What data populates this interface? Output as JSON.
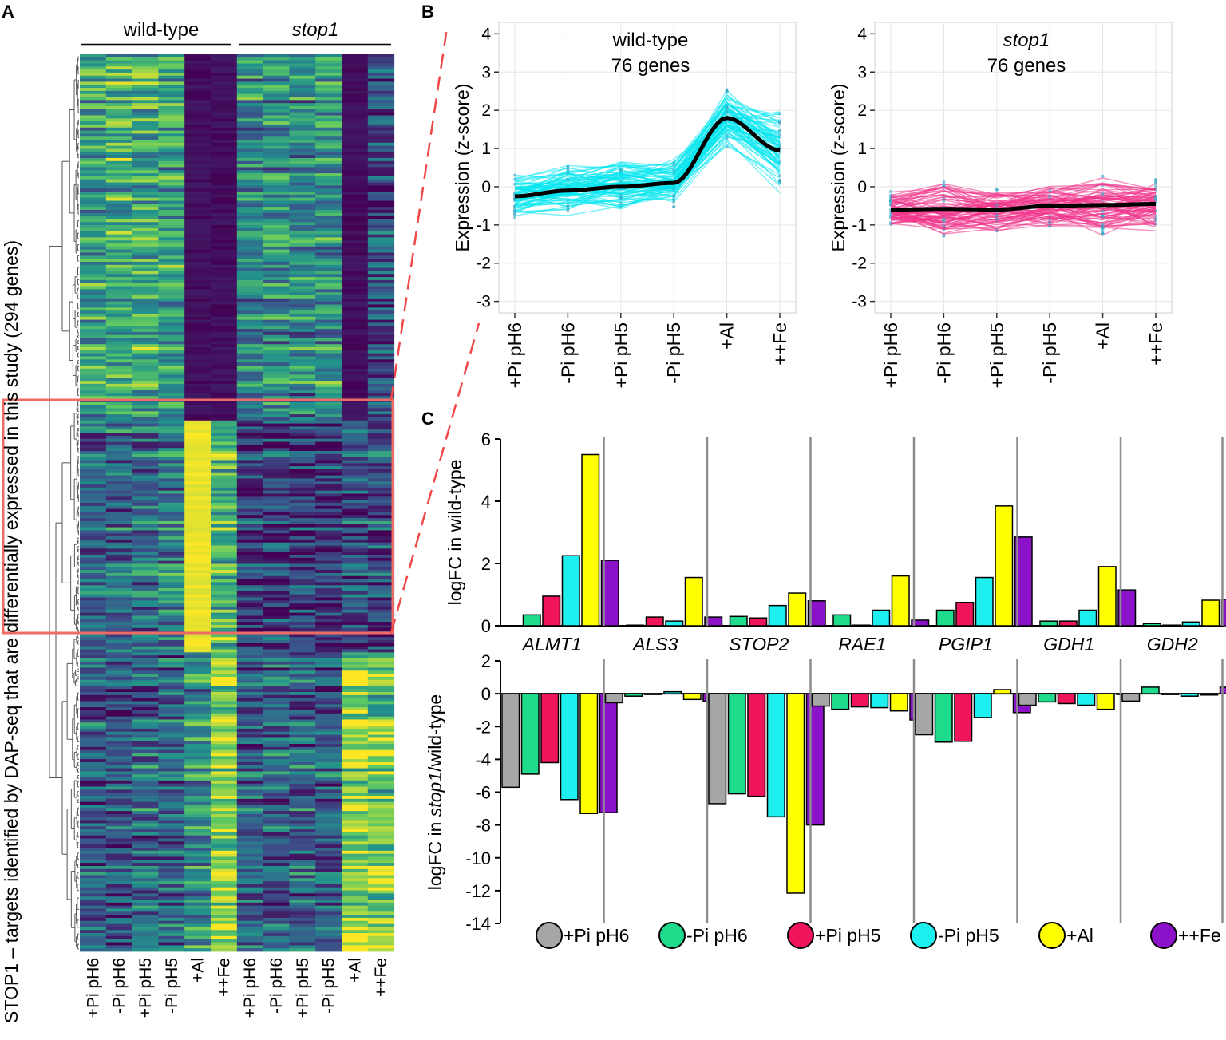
{
  "panels": {
    "a": "A",
    "b": "B",
    "c": "C"
  },
  "colors": {
    "gray": "#a6a6a6",
    "green": "#1fdc8c",
    "red": "#f0145a",
    "cyan": "#1ef0f0",
    "yellow": "#ffff00",
    "purple": "#8b12c8",
    "wt_line": "#00e5ee",
    "stop1_line": "#f0338a",
    "highlight": "#f06a66"
  },
  "heatmap": {
    "ylabel": "STOP1 – targets identified by DAP-seq that are differentially expressed in this study (294 genes)",
    "group_wt": "wild-type",
    "group_stop1": "stop1",
    "columns": [
      "+Pi pH6",
      "-Pi pH6",
      "+Pi pH5",
      "-Pi pH5",
      "+Al",
      "++Fe",
      "+Pi pH6",
      "-Pi pH6",
      "+Pi pH5",
      "-Pi pH5",
      "+Al",
      "++Fe"
    ],
    "viridis": [
      "#440154",
      "#3b528b",
      "#21918c",
      "#5ec962",
      "#fde725"
    ],
    "clusters": [
      {
        "name": "cluster-1",
        "rows": 120,
        "wt": [
          0.55,
          0.6,
          0.6,
          0.55,
          0.0,
          0.05
        ],
        "stop1": [
          0.45,
          0.5,
          0.45,
          0.5,
          0.05,
          0.2
        ]
      },
      {
        "name": "cluster-2-al-responsive",
        "rows": 76,
        "wt": [
          0.35,
          0.38,
          0.4,
          0.45,
          1.0,
          0.7
        ],
        "stop1": [
          0.2,
          0.2,
          0.2,
          0.2,
          0.25,
          0.25
        ]
      },
      {
        "name": "cluster-3",
        "rows": 98,
        "wt": [
          0.3,
          0.25,
          0.35,
          0.35,
          0.5,
          0.85
        ],
        "stop1": [
          0.3,
          0.3,
          0.3,
          0.3,
          0.85,
          0.75
        ]
      }
    ]
  },
  "wt_plot": {
    "title_line1": "wild-type",
    "title_line2": "76 genes",
    "ylabel": "Expression (z-score)",
    "conditions": [
      "+Pi pH6",
      "-Pi pH6",
      "+Pi pH5",
      "-Pi pH5",
      "+Al",
      "++Fe"
    ],
    "yticks": [
      4,
      3,
      2,
      1,
      0,
      -1,
      -2,
      -3
    ],
    "ylim": [
      -3.3,
      4.3
    ],
    "mean": [
      -0.25,
      -0.1,
      0.0,
      0.1,
      1.8,
      0.95
    ],
    "spread": [
      0.7,
      0.8,
      0.8,
      0.8,
      1.0,
      1.4
    ],
    "gene_count": 76
  },
  "stop1_plot": {
    "title_line1": "stop1",
    "title_line2": "76 genes",
    "ylabel": "Expression (z-score)",
    "conditions": [
      "+Pi pH6",
      "-Pi pH6",
      "+Pi pH5",
      "-Pi pH5",
      "+Al",
      "++Fe"
    ],
    "yticks": [
      4,
      3,
      2,
      1,
      0,
      -1,
      -2,
      -3
    ],
    "ylim": [
      -3.3,
      4.3
    ],
    "mean": [
      -0.6,
      -0.58,
      -0.6,
      -0.5,
      -0.48,
      -0.45
    ],
    "spread": [
      0.6,
      0.9,
      0.7,
      0.7,
      1.0,
      0.8
    ],
    "gene_count": 76
  },
  "chart_data": {
    "type": "bar",
    "title": "",
    "genes": [
      "ALMT1",
      "ALS3",
      "STOP2",
      "RAE1",
      "PGIP1",
      "GDH1",
      "GDH2"
    ],
    "legend": [
      "+Pi pH6",
      "-Pi pH6",
      "+Pi pH5",
      "-Pi pH5",
      "+Al",
      "++Fe"
    ],
    "wt": {
      "ylabel": "logFC in wild-type",
      "ylim": [
        0,
        6
      ],
      "yticks": [
        0,
        2,
        4,
        6
      ],
      "series_index": [
        1,
        2,
        3,
        4,
        5
      ],
      "values": [
        [
          0.35,
          0.95,
          2.25,
          5.5,
          2.1
        ],
        [
          0.02,
          0.28,
          0.15,
          1.55,
          0.28
        ],
        [
          0.3,
          0.25,
          0.65,
          1.05,
          0.8
        ],
        [
          0.35,
          0.02,
          0.5,
          1.6,
          0.18
        ],
        [
          0.5,
          0.75,
          1.55,
          3.85,
          2.85
        ],
        [
          0.15,
          0.15,
          0.5,
          1.9,
          1.15
        ],
        [
          0.07,
          0.02,
          0.12,
          0.82,
          0.85
        ]
      ]
    },
    "stop1": {
      "ylabel_prefix": "logFC in ",
      "ylabel_italic": "stop1",
      "ylabel_suffix": "/wild-type",
      "ylim": [
        -14,
        2
      ],
      "yticks": [
        2,
        0,
        -2,
        -4,
        -6,
        -8,
        -10,
        -12,
        -14
      ],
      "series_index": [
        0,
        1,
        2,
        3,
        4,
        5
      ],
      "values": [
        [
          -5.7,
          -4.9,
          -4.2,
          -6.45,
          -7.3,
          -7.25
        ],
        [
          -0.55,
          -0.15,
          0.0,
          0.12,
          -0.35,
          -0.45
        ],
        [
          -6.7,
          -6.1,
          -6.25,
          -7.5,
          -12.15,
          -8.0
        ],
        [
          -0.75,
          -0.95,
          -0.8,
          -0.85,
          -1.05,
          -1.6
        ],
        [
          -2.5,
          -2.95,
          -2.9,
          -1.45,
          0.25,
          -1.15
        ],
        [
          -0.7,
          -0.5,
          -0.6,
          -0.7,
          -0.95,
          0.0
        ],
        [
          -0.45,
          0.4,
          -0.05,
          -0.15,
          -0.08,
          0.4
        ]
      ]
    }
  }
}
